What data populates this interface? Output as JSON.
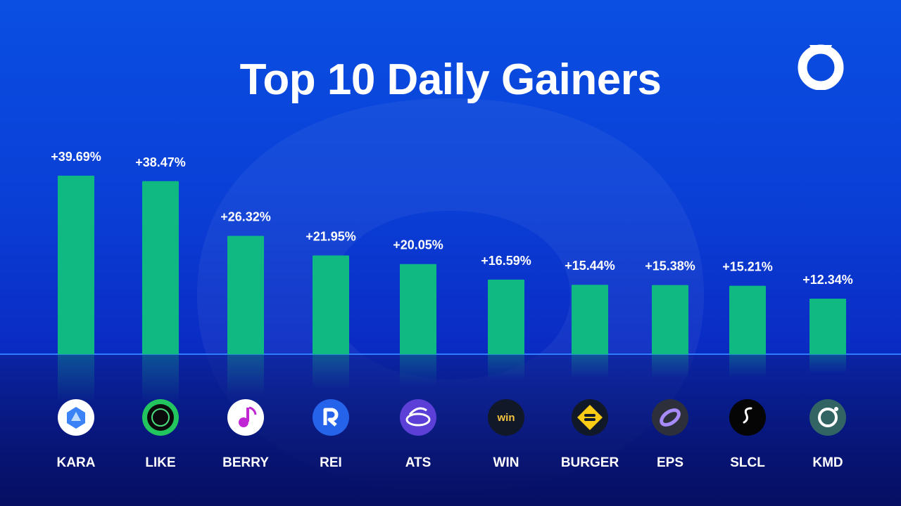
{
  "title": "Top 10 Daily Gainers",
  "colors": {
    "bar": "#10b981",
    "bar_reflection": "#12a87a",
    "text": "#ffffff",
    "accent": "#2f7bff"
  },
  "brand_logo": "ring-logo-icon",
  "chart_data": {
    "type": "bar",
    "title": "Top 10 Daily Gainers",
    "categories": [
      "KARA",
      "LIKE",
      "BERRY",
      "REI",
      "ATS",
      "WIN",
      "BURGER",
      "EPS",
      "SLCL",
      "KMD"
    ],
    "values": [
      39.69,
      38.47,
      26.32,
      21.95,
      20.05,
      16.59,
      15.44,
      15.38,
      15.21,
      12.34
    ],
    "data_labels": [
      "+39.69%",
      "+38.47%",
      "+26.32%",
      "+21.95%",
      "+20.05%",
      "+16.59%",
      "+15.44%",
      "+15.38%",
      "+15.21%",
      "+12.34%"
    ],
    "unit": "%",
    "grid": false,
    "legend": "none",
    "icons": [
      "kara-token-icon",
      "like-token-icon",
      "berry-token-icon",
      "rei-token-icon",
      "ats-token-icon",
      "win-token-icon",
      "burger-token-icon",
      "eps-token-icon",
      "slcl-token-icon",
      "kmd-token-icon"
    ]
  }
}
